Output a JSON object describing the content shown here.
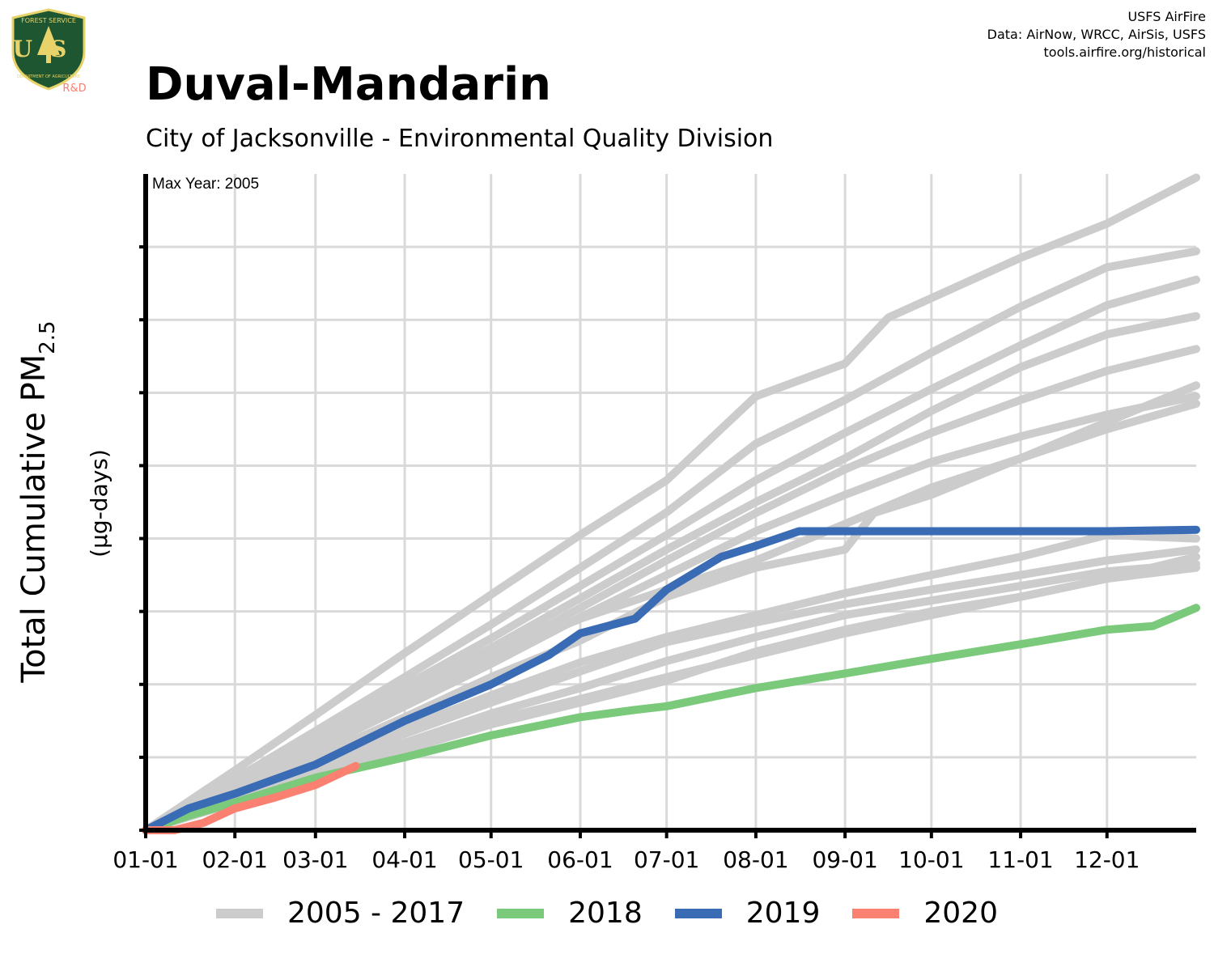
{
  "header": {
    "title": "Duval-Mandarin",
    "subtitle": "City of Jacksonville - Environmental Quality Division",
    "credits": [
      "USFS AirFire",
      "Data: AirNow, WRCC, AirSis, USFS",
      "tools.airfire.org/historical"
    ],
    "logo_text": {
      "top": "FOREST SERVICE",
      "badge": "US",
      "bottom": "DEPARTMENT OF AGRICULTURE",
      "tag": "R&D"
    }
  },
  "colors": {
    "history": "#cccccc",
    "2018": "#7bc97b",
    "2019": "#3a6bb5",
    "2020": "#fa8072",
    "grid": "#d9d9d9",
    "logo_green": "#1e5631",
    "logo_gold": "#e8d36a",
    "logo_tag": "#fa8072"
  },
  "chart_data": {
    "type": "line",
    "annotation": "Max Year: 2005",
    "ylabel_main": "Total Cumulative PM",
    "ylabel_sub": "2.5",
    "ylabel_units": "(µg-days)",
    "x_tick_labels": [
      "01-01",
      "02-01",
      "03-01",
      "04-01",
      "05-01",
      "06-01",
      "07-01",
      "08-01",
      "09-01",
      "10-01",
      "11-01",
      "12-01"
    ],
    "x_tick_days": [
      0,
      31,
      59,
      90,
      120,
      151,
      181,
      212,
      243,
      273,
      304,
      334
    ],
    "xlim": [
      0,
      365
    ],
    "ylim": [
      0,
      9
    ],
    "y_ticks": [
      0,
      1,
      2,
      3,
      4,
      5,
      6,
      7,
      8
    ],
    "legend": {
      "position": "bottom",
      "entries": [
        {
          "label": "2005 - 2017",
          "color": "#cccccc"
        },
        {
          "label": "2018",
          "color": "#7bc97b"
        },
        {
          "label": "2019",
          "color": "#3a6bb5"
        },
        {
          "label": "2020",
          "color": "#fa8072"
        }
      ]
    },
    "series": [
      {
        "group": "2005 - 2017",
        "color": "#cccccc",
        "points": [
          [
            0,
            0
          ],
          [
            31,
            0.82
          ],
          [
            59,
            1.58
          ],
          [
            90,
            2.43
          ],
          [
            120,
            3.23
          ],
          [
            151,
            4.05
          ],
          [
            181,
            4.8
          ],
          [
            212,
            5.95
          ],
          [
            243,
            6.4
          ],
          [
            258,
            7.03
          ],
          [
            304,
            7.85
          ],
          [
            334,
            8.32
          ],
          [
            365,
            8.95
          ]
        ]
      },
      {
        "group": "2005 - 2017",
        "color": "#cccccc",
        "points": [
          [
            0,
            0
          ],
          [
            31,
            0.7
          ],
          [
            59,
            1.36
          ],
          [
            90,
            2.1
          ],
          [
            120,
            2.82
          ],
          [
            151,
            3.6
          ],
          [
            181,
            4.36
          ],
          [
            212,
            5.3
          ],
          [
            243,
            5.9
          ],
          [
            273,
            6.55
          ],
          [
            304,
            7.18
          ],
          [
            334,
            7.72
          ],
          [
            365,
            7.94
          ]
        ]
      },
      {
        "group": "2005 - 2017",
        "color": "#cccccc",
        "points": [
          [
            0,
            0
          ],
          [
            31,
            0.65
          ],
          [
            59,
            1.28
          ],
          [
            90,
            1.98
          ],
          [
            120,
            2.63
          ],
          [
            151,
            3.35
          ],
          [
            181,
            4.05
          ],
          [
            212,
            4.8
          ],
          [
            243,
            5.45
          ],
          [
            273,
            6.05
          ],
          [
            304,
            6.65
          ],
          [
            334,
            7.2
          ],
          [
            365,
            7.55
          ]
        ]
      },
      {
        "group": "2005 - 2017",
        "color": "#cccccc",
        "points": [
          [
            0,
            0
          ],
          [
            31,
            0.62
          ],
          [
            59,
            1.22
          ],
          [
            90,
            1.88
          ],
          [
            120,
            2.5
          ],
          [
            151,
            3.18
          ],
          [
            181,
            3.85
          ],
          [
            212,
            4.5
          ],
          [
            243,
            5.1
          ],
          [
            273,
            5.75
          ],
          [
            304,
            6.35
          ],
          [
            334,
            6.8
          ],
          [
            365,
            7.05
          ]
        ]
      },
      {
        "group": "2005 - 2017",
        "color": "#cccccc",
        "points": [
          [
            0,
            0
          ],
          [
            31,
            0.58
          ],
          [
            59,
            1.15
          ],
          [
            90,
            1.78
          ],
          [
            120,
            2.38
          ],
          [
            151,
            3.05
          ],
          [
            181,
            3.7
          ],
          [
            212,
            4.35
          ],
          [
            243,
            4.95
          ],
          [
            273,
            5.45
          ],
          [
            304,
            5.9
          ],
          [
            334,
            6.3
          ],
          [
            365,
            6.6
          ]
        ]
      },
      {
        "group": "2005 - 2017",
        "color": "#cccccc",
        "points": [
          [
            0,
            0
          ],
          [
            31,
            0.55
          ],
          [
            59,
            1.1
          ],
          [
            90,
            1.7
          ],
          [
            120,
            2.28
          ],
          [
            151,
            2.92
          ],
          [
            181,
            3.5
          ],
          [
            212,
            4.1
          ],
          [
            243,
            4.6
          ],
          [
            273,
            5.05
          ],
          [
            304,
            5.4
          ],
          [
            334,
            5.7
          ],
          [
            365,
            5.95
          ]
        ]
      },
      {
        "group": "2005 - 2017",
        "color": "#cccccc",
        "points": [
          [
            0,
            0
          ],
          [
            31,
            0.6
          ],
          [
            59,
            1.2
          ],
          [
            90,
            1.8
          ],
          [
            120,
            2.4
          ],
          [
            151,
            2.9
          ],
          [
            181,
            3.3
          ],
          [
            212,
            3.7
          ],
          [
            243,
            4.2
          ],
          [
            273,
            4.7
          ],
          [
            304,
            5.1
          ],
          [
            334,
            5.5
          ],
          [
            365,
            5.85
          ]
        ]
      },
      {
        "group": "2005 - 2017",
        "color": "#cccccc",
        "points": [
          [
            0,
            0
          ],
          [
            31,
            0.5
          ],
          [
            59,
            1.0
          ],
          [
            90,
            1.55
          ],
          [
            120,
            2.1
          ],
          [
            151,
            2.6
          ],
          [
            181,
            3.2
          ],
          [
            212,
            3.6
          ],
          [
            243,
            3.85
          ],
          [
            253,
            4.35
          ],
          [
            273,
            4.6
          ],
          [
            304,
            5.1
          ],
          [
            334,
            5.6
          ],
          [
            365,
            6.1
          ]
        ]
      },
      {
        "group": "2005 - 2017",
        "color": "#cccccc",
        "points": [
          [
            0,
            0
          ],
          [
            31,
            0.5
          ],
          [
            59,
            0.95
          ],
          [
            90,
            1.4
          ],
          [
            120,
            1.85
          ],
          [
            151,
            2.3
          ],
          [
            181,
            2.65
          ],
          [
            212,
            2.95
          ],
          [
            243,
            3.25
          ],
          [
            273,
            3.5
          ],
          [
            304,
            3.75
          ],
          [
            334,
            4.05
          ],
          [
            365,
            4.0
          ]
        ]
      },
      {
        "group": "2005 - 2017",
        "color": "#cccccc",
        "points": [
          [
            0,
            0
          ],
          [
            31,
            0.45
          ],
          [
            59,
            0.88
          ],
          [
            90,
            1.32
          ],
          [
            120,
            1.75
          ],
          [
            151,
            2.18
          ],
          [
            181,
            2.58
          ],
          [
            212,
            2.85
          ],
          [
            243,
            3.1
          ],
          [
            273,
            3.3
          ],
          [
            304,
            3.5
          ],
          [
            334,
            3.7
          ],
          [
            365,
            3.85
          ]
        ]
      },
      {
        "group": "2005 - 2017",
        "color": "#cccccc",
        "points": [
          [
            0,
            0
          ],
          [
            31,
            0.42
          ],
          [
            59,
            0.82
          ],
          [
            90,
            1.2
          ],
          [
            120,
            1.6
          ],
          [
            151,
            1.95
          ],
          [
            181,
            2.32
          ],
          [
            212,
            2.65
          ],
          [
            243,
            2.95
          ],
          [
            273,
            3.15
          ],
          [
            304,
            3.35
          ],
          [
            334,
            3.55
          ],
          [
            365,
            3.65
          ]
        ]
      },
      {
        "group": "2005 - 2017",
        "color": "#cccccc",
        "points": [
          [
            0,
            0
          ],
          [
            31,
            0.4
          ],
          [
            59,
            0.78
          ],
          [
            90,
            1.15
          ],
          [
            120,
            1.5
          ],
          [
            151,
            1.8
          ],
          [
            181,
            2.1
          ],
          [
            212,
            2.4
          ],
          [
            243,
            2.7
          ],
          [
            273,
            2.95
          ],
          [
            304,
            3.2
          ],
          [
            334,
            3.45
          ],
          [
            365,
            3.75
          ]
        ]
      },
      {
        "group": "2005 - 2017",
        "color": "#cccccc",
        "points": [
          [
            0,
            0
          ],
          [
            31,
            0.38
          ],
          [
            59,
            0.75
          ],
          [
            90,
            1.1
          ],
          [
            120,
            1.45
          ],
          [
            151,
            1.75
          ],
          [
            181,
            2.05
          ],
          [
            212,
            2.45
          ],
          [
            243,
            2.75
          ],
          [
            273,
            3.0
          ],
          [
            304,
            3.2
          ],
          [
            334,
            3.45
          ],
          [
            365,
            3.6
          ]
        ]
      },
      {
        "name": "2018",
        "color": "#7bc97b",
        "points": [
          [
            0,
            0
          ],
          [
            15,
            0.2
          ],
          [
            31,
            0.38
          ],
          [
            59,
            0.72
          ],
          [
            90,
            1.0
          ],
          [
            120,
            1.3
          ],
          [
            151,
            1.55
          ],
          [
            170,
            1.65
          ],
          [
            181,
            1.7
          ],
          [
            212,
            1.95
          ],
          [
            243,
            2.15
          ],
          [
            273,
            2.35
          ],
          [
            304,
            2.55
          ],
          [
            334,
            2.75
          ],
          [
            350,
            2.8
          ],
          [
            365,
            3.05
          ]
        ]
      },
      {
        "name": "2019",
        "color": "#3a6bb5",
        "points": [
          [
            0,
            0
          ],
          [
            15,
            0.3
          ],
          [
            31,
            0.5
          ],
          [
            59,
            0.9
          ],
          [
            90,
            1.5
          ],
          [
            120,
            2.0
          ],
          [
            140,
            2.4
          ],
          [
            151,
            2.7
          ],
          [
            170,
            2.9
          ],
          [
            181,
            3.3
          ],
          [
            200,
            3.75
          ],
          [
            212,
            3.9
          ],
          [
            227,
            4.1
          ],
          [
            334,
            4.1
          ],
          [
            365,
            4.12
          ]
        ]
      },
      {
        "name": "2020",
        "color": "#fa8072",
        "points": [
          [
            0,
            0
          ],
          [
            10,
            0
          ],
          [
            20,
            0.1
          ],
          [
            31,
            0.3
          ],
          [
            45,
            0.45
          ],
          [
            59,
            0.62
          ],
          [
            73,
            0.88
          ]
        ]
      }
    ]
  }
}
